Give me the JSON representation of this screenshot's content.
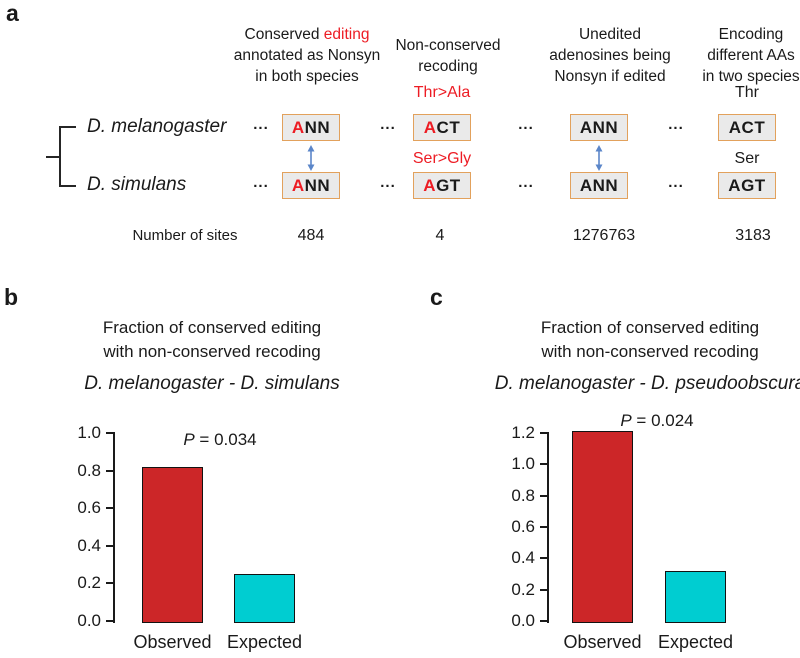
{
  "colors": {
    "red_text": "#ED1C24",
    "bar_red": "#CC2628",
    "bar_cyan": "#00CDD1",
    "box_fill": "#EAEAEA",
    "box_border": "#E2A15C",
    "arrow_blue": "#5B86C9"
  },
  "panel_a": {
    "label": "a",
    "species": [
      "D. melanogaster",
      "D. simulans"
    ],
    "ellipsis": "...",
    "number_of_sites_label": "Number of sites",
    "columns": [
      {
        "header": {
          "line1_black": "Conserved ",
          "line1_red": "editing",
          "line2": "annotated as Nonsyn",
          "line3": "in both species"
        },
        "row1": {
          "a": "A",
          "rest": "NN"
        },
        "row2": {
          "a": "A",
          "rest": "NN"
        },
        "sites": "484"
      },
      {
        "header": {
          "line1": "Non-conserved",
          "line2": "recoding"
        },
        "annotation_row1": "Thr>Ala",
        "annotation_row2": "Ser>Gly",
        "row1": {
          "a": "A",
          "rest": "CT"
        },
        "row2": {
          "a": "A",
          "rest": "GT"
        },
        "sites": "4"
      },
      {
        "header": {
          "line1": "Unedited",
          "line2": "adenosines being",
          "line3": "Nonsyn if edited"
        },
        "row1": {
          "a": "A",
          "rest": "NN"
        },
        "row2": {
          "a": "A",
          "rest": "NN"
        },
        "sites": "1276763"
      },
      {
        "header": {
          "line1": "Encoding",
          "line2": "different AAs",
          "line3": "in two species"
        },
        "annotation_row1": "Thr",
        "annotation_row2": "Ser",
        "row1": {
          "a": "A",
          "rest": "CT"
        },
        "row2": {
          "a": "A",
          "rest": "GT"
        },
        "sites": "3183"
      }
    ]
  },
  "chart_data": [
    {
      "type": "bar",
      "panel_label": "b",
      "title_lines": [
        "Fraction of conserved editing",
        "with non-conserved recoding"
      ],
      "subtitle": "D. melanogaster - D. simulans",
      "categories": [
        "Observed",
        "Expected"
      ],
      "values": [
        0.82,
        0.25
      ],
      "bar_colors": [
        "#CC2628",
        "#00CDD1"
      ],
      "p_prefix": "P",
      "p_suffix": " = 0.034",
      "ylim": [
        0,
        1.0
      ],
      "yticks": [
        0,
        0.2,
        0.4,
        0.6,
        0.8,
        1.0
      ],
      "xlabel": "",
      "ylabel": "",
      "grid": false,
      "legend": false
    },
    {
      "type": "bar",
      "panel_label": "c",
      "title_lines": [
        "Fraction of conserved editing",
        "with non-conserved recoding"
      ],
      "subtitle": "D. melanogaster - D. pseudoobscura",
      "categories": [
        "Observed",
        "Expected"
      ],
      "values": [
        1.21,
        0.32
      ],
      "bar_colors": [
        "#CC2628",
        "#00CDD1"
      ],
      "p_prefix": "P",
      "p_suffix": " = 0.024",
      "ylim": [
        0,
        1.2
      ],
      "yticks": [
        0,
        0.2,
        0.4,
        0.6,
        0.8,
        1.0,
        1.2
      ],
      "xlabel": "",
      "ylabel": "",
      "grid": false,
      "legend": false
    }
  ]
}
